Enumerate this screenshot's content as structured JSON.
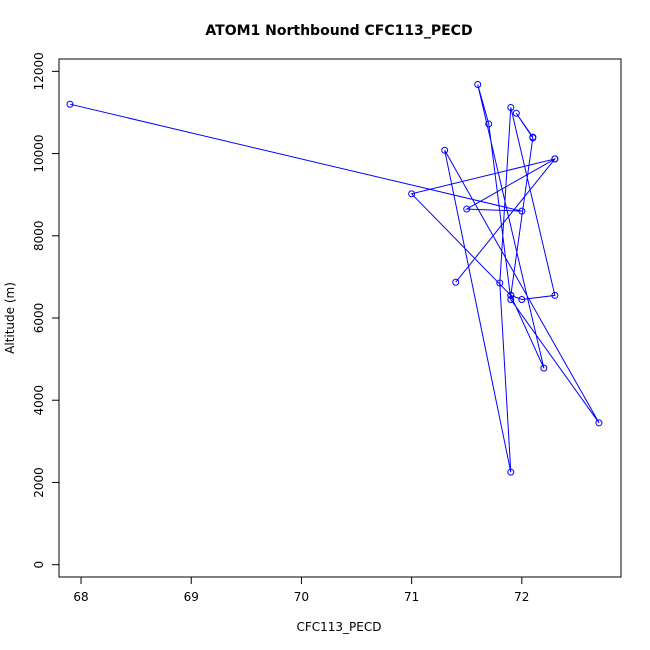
{
  "chart_data": {
    "type": "line",
    "title": "ATOM1 Northbound CFC113_PECD",
    "xlabel": "CFC113_PECD",
    "ylabel": "Altitude (m)",
    "xlim": [
      67.8,
      72.9
    ],
    "ylim": [
      -300,
      12300
    ],
    "xticks": [
      68,
      69,
      70,
      71,
      72
    ],
    "yticks": [
      0,
      2000,
      4000,
      6000,
      8000,
      10000,
      12000
    ],
    "grid": false,
    "color": "#0000ff",
    "series": [
      {
        "points": [
          {
            "x": 67.9,
            "y": 11200
          },
          {
            "x": 72.0,
            "y": 8600
          },
          {
            "x": 71.5,
            "y": 8650
          },
          {
            "x": 72.3,
            "y": 9870
          },
          {
            "x": 71.4,
            "y": 6870
          },
          {
            "x": 72.3,
            "y": 9870
          },
          {
            "x": 71.0,
            "y": 9020
          },
          {
            "x": 71.9,
            "y": 6550
          },
          {
            "x": 72.2,
            "y": 4780
          },
          {
            "x": 71.6,
            "y": 11680
          },
          {
            "x": 71.7,
            "y": 10720
          },
          {
            "x": 71.9,
            "y": 6450
          },
          {
            "x": 72.7,
            "y": 3450
          },
          {
            "x": 71.3,
            "y": 10080
          },
          {
            "x": 71.9,
            "y": 2250
          },
          {
            "x": 71.8,
            "y": 6850
          },
          {
            "x": 71.9,
            "y": 11120
          },
          {
            "x": 72.3,
            "y": 6550
          },
          {
            "x": 72.0,
            "y": 6450
          },
          {
            "x": 71.9,
            "y": 6550
          },
          {
            "x": 72.1,
            "y": 10380
          },
          {
            "x": 71.95,
            "y": 10980
          },
          {
            "x": 72.1,
            "y": 10400
          }
        ]
      }
    ]
  }
}
